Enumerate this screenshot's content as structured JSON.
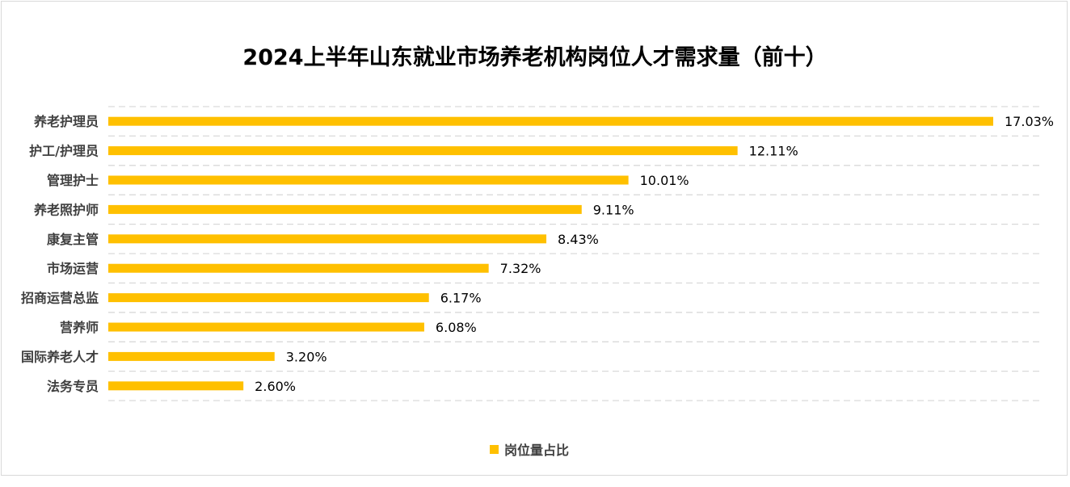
{
  "chart_data": {
    "type": "bar",
    "orientation": "horizontal",
    "title": "2024上半年山东就业市场养老机构岗位人才需求量（前十）",
    "categories": [
      "养老护理员",
      "护工/护理员",
      "管理护士",
      "养老照护师",
      "康复主管",
      "市场运营",
      "招商运营总监",
      "营养师",
      "国际养老人才",
      "法务专员"
    ],
    "series": [
      {
        "name": "岗位量占比",
        "values": [
          17.03,
          12.11,
          10.01,
          9.11,
          8.43,
          7.32,
          6.17,
          6.08,
          3.2,
          2.6
        ],
        "labels": [
          "17.03%",
          "12.11%",
          "10.01%",
          "9.11%",
          "8.43%",
          "7.32%",
          "6.17%",
          "6.08%",
          "3.20%",
          "2.60%"
        ],
        "color": "#FFC000"
      }
    ],
    "xlim": [
      0,
      17.03
    ],
    "grid": true,
    "legend": "bottom"
  }
}
